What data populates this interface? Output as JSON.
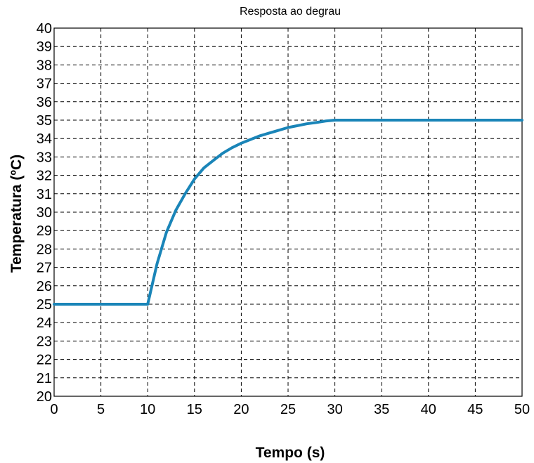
{
  "chart_data": {
    "type": "line",
    "title": "Resposta ao degrau",
    "xlabel": "Tempo (s)",
    "ylabel": "Temperatura (ºC)",
    "xlim": [
      0,
      50
    ],
    "ylim": [
      20,
      40
    ],
    "xticks": [
      0,
      5,
      10,
      15,
      20,
      25,
      30,
      35,
      40,
      45,
      50
    ],
    "yticks": [
      20,
      21,
      22,
      23,
      24,
      25,
      26,
      27,
      28,
      29,
      30,
      31,
      32,
      33,
      34,
      35,
      36,
      37,
      38,
      39,
      40
    ],
    "grid": true,
    "colors": {
      "series": "#1a85b8",
      "grid": "#000000",
      "frame": "#000000"
    },
    "series": [
      {
        "x": [
          0,
          10,
          11,
          12,
          13,
          14,
          15,
          16,
          17,
          18,
          19,
          20,
          21,
          22,
          23,
          24,
          25,
          26,
          27,
          28,
          29,
          30,
          35,
          40,
          45,
          50
        ],
        "y": [
          25,
          25,
          27.2,
          28.9,
          30.1,
          31.0,
          31.8,
          32.4,
          32.8,
          33.2,
          33.5,
          33.75,
          33.95,
          34.15,
          34.3,
          34.45,
          34.6,
          34.7,
          34.8,
          34.87,
          34.95,
          35,
          35,
          35,
          35,
          35
        ]
      }
    ]
  }
}
